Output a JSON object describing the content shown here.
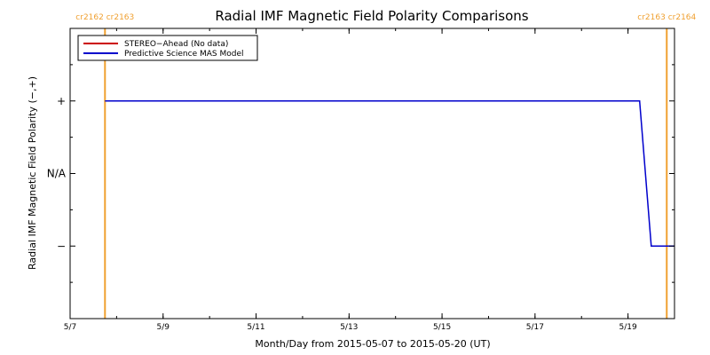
{
  "chart_data": {
    "type": "line",
    "title": "Radial IMF Magnetic Field Polarity Comparisons",
    "xlabel": "Month/Day from 2015-05-07 to 2015-05-20 (UT)",
    "ylabel": "Radial IMF Magnetic Field Polarity (−,+)",
    "xlim": [
      "2015-05-07",
      "2015-05-20"
    ],
    "ylim": [
      "",
      "+"
    ],
    "x_ticks": [
      {
        "date": "2015-05-07",
        "label": "5/7"
      },
      {
        "date": "2015-05-09",
        "label": "5/9"
      },
      {
        "date": "2015-05-11",
        "label": "5/11"
      },
      {
        "date": "2015-05-13",
        "label": "5/13"
      },
      {
        "date": "2015-05-15",
        "label": "5/15"
      },
      {
        "date": "2015-05-17",
        "label": "5/17"
      },
      {
        "date": "2015-05-19",
        "label": "5/19"
      }
    ],
    "y_categories": [
      "−",
      "N/A",
      "+"
    ],
    "grid": false,
    "legend_position": "top-left",
    "series": [
      {
        "name": "STEREO−Ahead (No data)",
        "color": "#cc0000",
        "points": []
      },
      {
        "name": "Predictive Science MAS Model",
        "color": "#0000cc",
        "points": [
          {
            "x": "2015-05-07 18:00",
            "y": "+"
          },
          {
            "x": "2015-05-19 06:00",
            "y": "+"
          },
          {
            "x": "2015-05-19 12:00",
            "y": "−"
          },
          {
            "x": "2015-05-20 00:00",
            "y": "−"
          }
        ]
      }
    ],
    "carrington_boundaries": [
      {
        "x": "2015-05-07 18:00",
        "label": "cr2162 cr2163",
        "color": "#f0a030"
      },
      {
        "x": "2015-05-19 20:00",
        "label": "cr2163 cr2164",
        "color": "#f0a030"
      }
    ]
  }
}
